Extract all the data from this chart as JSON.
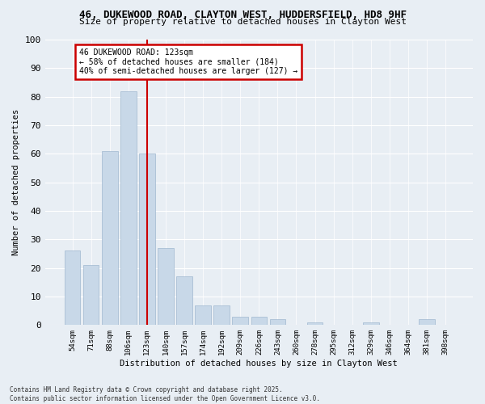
{
  "title_line1": "46, DUKEWOOD ROAD, CLAYTON WEST, HUDDERSFIELD, HD8 9HF",
  "title_line2": "Size of property relative to detached houses in Clayton West",
  "xlabel": "Distribution of detached houses by size in Clayton West",
  "ylabel": "Number of detached properties",
  "bar_color": "#c8d8e8",
  "bar_edge_color": "#a0b8d0",
  "background_color": "#e8eef4",
  "grid_color": "#ffffff",
  "categories": [
    "54sqm",
    "71sqm",
    "88sqm",
    "106sqm",
    "123sqm",
    "140sqm",
    "157sqm",
    "174sqm",
    "192sqm",
    "209sqm",
    "226sqm",
    "243sqm",
    "260sqm",
    "278sqm",
    "295sqm",
    "312sqm",
    "329sqm",
    "346sqm",
    "364sqm",
    "381sqm",
    "398sqm"
  ],
  "values": [
    26,
    21,
    61,
    82,
    60,
    27,
    17,
    7,
    7,
    3,
    3,
    2,
    0,
    1,
    0,
    0,
    1,
    0,
    0,
    2,
    0
  ],
  "vline_x": 4,
  "vline_color": "#cc0000",
  "annotation_text": "46 DUKEWOOD ROAD: 123sqm\n← 58% of detached houses are smaller (184)\n40% of semi-detached houses are larger (127) →",
  "annotation_box_color": "#ffffff",
  "annotation_box_edge": "#cc0000",
  "ylim": [
    0,
    100
  ],
  "yticks": [
    0,
    10,
    20,
    30,
    40,
    50,
    60,
    70,
    80,
    90,
    100
  ],
  "footnote": "Contains HM Land Registry data © Crown copyright and database right 2025.\nContains public sector information licensed under the Open Government Licence v3.0."
}
